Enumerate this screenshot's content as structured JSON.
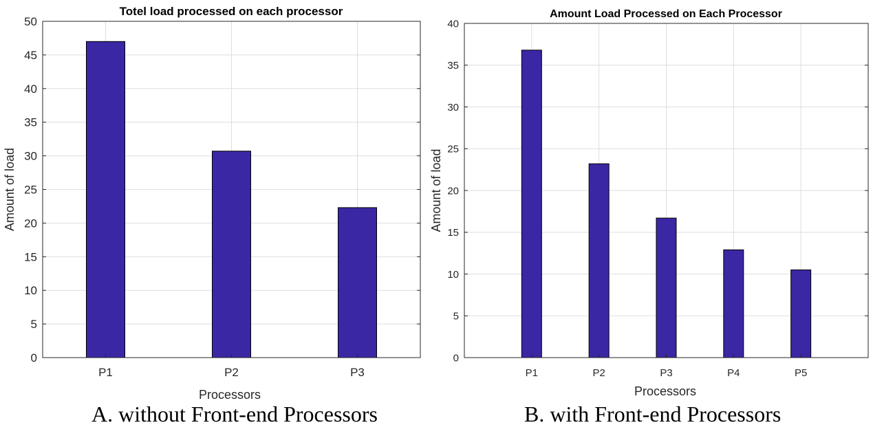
{
  "chart_data": [
    {
      "type": "bar",
      "title": "Totel load processed on each processor",
      "xlabel": "Processors",
      "ylabel": "Amount of load",
      "categories": [
        "P1",
        "P2",
        "P3"
      ],
      "values": [
        47,
        30.7,
        22.3
      ],
      "ylim": [
        0,
        50
      ],
      "yticks": [
        0,
        5,
        10,
        15,
        20,
        25,
        30,
        35,
        40,
        45,
        50
      ],
      "grid": true,
      "bar_color": "#3a27a3"
    },
    {
      "type": "bar",
      "title": "Amount Load Processed on Each Processor",
      "xlabel": "Processors",
      "ylabel": "Amount of load",
      "categories": [
        "P1",
        "P2",
        "P3",
        "P4",
        "P5"
      ],
      "values": [
        36.8,
        23.2,
        16.7,
        12.9,
        10.5
      ],
      "ylim": [
        0,
        40
      ],
      "yticks": [
        0,
        5,
        10,
        15,
        20,
        25,
        30,
        35,
        40
      ],
      "grid": true,
      "bar_color": "#3a27a3"
    }
  ],
  "captions": {
    "a": "A. without Front-end Processors",
    "b": "B. with Front-end Processors"
  }
}
